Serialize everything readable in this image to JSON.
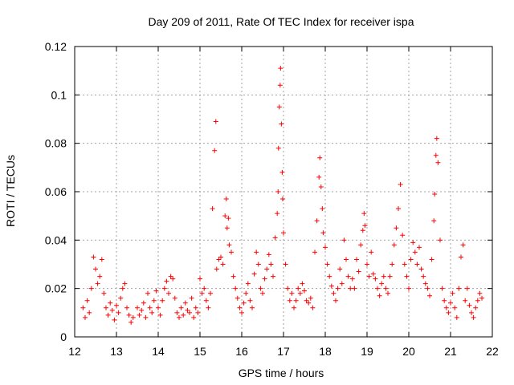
{
  "chart_data": {
    "type": "scatter",
    "title": "Day 209 of 2011, Rate Of TEC Index for receiver ispa",
    "xlabel": "GPS time / hours",
    "ylabel": "ROTI / TECUs",
    "xlim": [
      12,
      22
    ],
    "ylim": [
      0,
      0.12
    ],
    "xticks": [
      "12",
      "13",
      "14",
      "15",
      "16",
      "17",
      "18",
      "19",
      "20",
      "21",
      "22"
    ],
    "yticks": [
      "0",
      "0.02",
      "0.04",
      "0.06",
      "0.08",
      "0.1",
      "0.12"
    ],
    "grid": true,
    "legend": "none",
    "marker": "+",
    "series_color": "#ff0000",
    "series": [
      {
        "points": [
          [
            12.2,
            0.012
          ],
          [
            12.25,
            0.008
          ],
          [
            12.3,
            0.015
          ],
          [
            12.35,
            0.01
          ],
          [
            12.4,
            0.02
          ],
          [
            12.45,
            0.033
          ],
          [
            12.5,
            0.028
          ],
          [
            12.55,
            0.022
          ],
          [
            12.6,
            0.025
          ],
          [
            12.65,
            0.032
          ],
          [
            12.7,
            0.018
          ],
          [
            12.75,
            0.012
          ],
          [
            12.8,
            0.009
          ],
          [
            12.85,
            0.014
          ],
          [
            12.9,
            0.011
          ],
          [
            12.95,
            0.007
          ],
          [
            13.0,
            0.013
          ],
          [
            13.05,
            0.01
          ],
          [
            13.1,
            0.016
          ],
          [
            13.15,
            0.02
          ],
          [
            13.2,
            0.022
          ],
          [
            13.25,
            0.012
          ],
          [
            13.3,
            0.009
          ],
          [
            13.35,
            0.006
          ],
          [
            13.4,
            0.008
          ],
          [
            13.5,
            0.012
          ],
          [
            13.55,
            0.009
          ],
          [
            13.6,
            0.011
          ],
          [
            13.65,
            0.014
          ],
          [
            13.7,
            0.008
          ],
          [
            13.75,
            0.018
          ],
          [
            13.8,
            0.012
          ],
          [
            13.85,
            0.01
          ],
          [
            13.9,
            0.015
          ],
          [
            13.95,
            0.019
          ],
          [
            14.0,
            0.012
          ],
          [
            14.05,
            0.009
          ],
          [
            14.1,
            0.015
          ],
          [
            14.15,
            0.02
          ],
          [
            14.2,
            0.023
          ],
          [
            14.25,
            0.018
          ],
          [
            14.3,
            0.025
          ],
          [
            14.35,
            0.024
          ],
          [
            14.4,
            0.016
          ],
          [
            14.45,
            0.01
          ],
          [
            14.5,
            0.008
          ],
          [
            14.55,
            0.012
          ],
          [
            14.6,
            0.009
          ],
          [
            14.65,
            0.014
          ],
          [
            14.7,
            0.011
          ],
          [
            14.75,
            0.01
          ],
          [
            14.8,
            0.016
          ],
          [
            14.85,
            0.008
          ],
          [
            14.9,
            0.012
          ],
          [
            14.95,
            0.01
          ],
          [
            15.0,
            0.024
          ],
          [
            15.05,
            0.018
          ],
          [
            15.1,
            0.02
          ],
          [
            15.15,
            0.015
          ],
          [
            15.2,
            0.012
          ],
          [
            15.25,
            0.018
          ],
          [
            15.3,
            0.053
          ],
          [
            15.35,
            0.077
          ],
          [
            15.38,
            0.089
          ],
          [
            15.4,
            0.028
          ],
          [
            15.45,
            0.032
          ],
          [
            15.5,
            0.033
          ],
          [
            15.55,
            0.03
          ],
          [
            15.6,
            0.05
          ],
          [
            15.63,
            0.057
          ],
          [
            15.65,
            0.045
          ],
          [
            15.68,
            0.049
          ],
          [
            15.7,
            0.038
          ],
          [
            15.75,
            0.035
          ],
          [
            15.8,
            0.025
          ],
          [
            15.85,
            0.02
          ],
          [
            15.9,
            0.016
          ],
          [
            15.95,
            0.012
          ],
          [
            16.0,
            0.01
          ],
          [
            16.05,
            0.014
          ],
          [
            16.1,
            0.018
          ],
          [
            16.15,
            0.022
          ],
          [
            16.2,
            0.015
          ],
          [
            16.25,
            0.012
          ],
          [
            16.3,
            0.026
          ],
          [
            16.35,
            0.035
          ],
          [
            16.4,
            0.03
          ],
          [
            16.45,
            0.02
          ],
          [
            16.5,
            0.018
          ],
          [
            16.55,
            0.024
          ],
          [
            16.6,
            0.028
          ],
          [
            16.65,
            0.034
          ],
          [
            16.7,
            0.03
          ],
          [
            16.75,
            0.025
          ],
          [
            16.8,
            0.041
          ],
          [
            16.85,
            0.051
          ],
          [
            16.87,
            0.06
          ],
          [
            16.88,
            0.078
          ],
          [
            16.9,
            0.095
          ],
          [
            16.92,
            0.104
          ],
          [
            16.93,
            0.111
          ],
          [
            16.95,
            0.088
          ],
          [
            16.97,
            0.068
          ],
          [
            16.98,
            0.057
          ],
          [
            17.0,
            0.043
          ],
          [
            17.05,
            0.03
          ],
          [
            17.1,
            0.02
          ],
          [
            17.15,
            0.015
          ],
          [
            17.2,
            0.018
          ],
          [
            17.25,
            0.012
          ],
          [
            17.3,
            0.015
          ],
          [
            17.35,
            0.02
          ],
          [
            17.4,
            0.018
          ],
          [
            17.45,
            0.022
          ],
          [
            17.5,
            0.019
          ],
          [
            17.55,
            0.015
          ],
          [
            17.6,
            0.014
          ],
          [
            17.65,
            0.016
          ],
          [
            17.7,
            0.012
          ],
          [
            17.75,
            0.035
          ],
          [
            17.8,
            0.048
          ],
          [
            17.85,
            0.066
          ],
          [
            17.87,
            0.074
          ],
          [
            17.9,
            0.062
          ],
          [
            17.93,
            0.053
          ],
          [
            17.95,
            0.043
          ],
          [
            18.0,
            0.037
          ],
          [
            18.05,
            0.03
          ],
          [
            18.1,
            0.025
          ],
          [
            18.15,
            0.021
          ],
          [
            18.2,
            0.018
          ],
          [
            18.25,
            0.015
          ],
          [
            18.3,
            0.02
          ],
          [
            18.35,
            0.028
          ],
          [
            18.4,
            0.022
          ],
          [
            18.45,
            0.04
          ],
          [
            18.5,
            0.032
          ],
          [
            18.55,
            0.025
          ],
          [
            18.6,
            0.02
          ],
          [
            18.65,
            0.024
          ],
          [
            18.7,
            0.02
          ],
          [
            18.75,
            0.032
          ],
          [
            18.8,
            0.027
          ],
          [
            18.85,
            0.038
          ],
          [
            18.9,
            0.044
          ],
          [
            18.93,
            0.051
          ],
          [
            18.95,
            0.046
          ],
          [
            19.0,
            0.03
          ],
          [
            19.05,
            0.025
          ],
          [
            19.1,
            0.035
          ],
          [
            19.15,
            0.026
          ],
          [
            19.2,
            0.024
          ],
          [
            19.25,
            0.02
          ],
          [
            19.3,
            0.017
          ],
          [
            19.35,
            0.022
          ],
          [
            19.4,
            0.025
          ],
          [
            19.45,
            0.02
          ],
          [
            19.5,
            0.018
          ],
          [
            19.55,
            0.025
          ],
          [
            19.6,
            0.03
          ],
          [
            19.65,
            0.038
          ],
          [
            19.7,
            0.045
          ],
          [
            19.75,
            0.053
          ],
          [
            19.8,
            0.063
          ],
          [
            19.85,
            0.042
          ],
          [
            19.9,
            0.03
          ],
          [
            19.95,
            0.025
          ],
          [
            20.0,
            0.02
          ],
          [
            20.05,
            0.032
          ],
          [
            20.1,
            0.039
          ],
          [
            20.15,
            0.035
          ],
          [
            20.2,
            0.03
          ],
          [
            20.25,
            0.037
          ],
          [
            20.3,
            0.028
          ],
          [
            20.35,
            0.025
          ],
          [
            20.4,
            0.022
          ],
          [
            20.45,
            0.02
          ],
          [
            20.5,
            0.017
          ],
          [
            20.55,
            0.032
          ],
          [
            20.6,
            0.048
          ],
          [
            20.62,
            0.059
          ],
          [
            20.65,
            0.075
          ],
          [
            20.67,
            0.082
          ],
          [
            20.7,
            0.072
          ],
          [
            20.75,
            0.04
          ],
          [
            20.8,
            0.02
          ],
          [
            20.85,
            0.015
          ],
          [
            20.9,
            0.012
          ],
          [
            20.95,
            0.01
          ],
          [
            21.0,
            0.014
          ],
          [
            21.05,
            0.018
          ],
          [
            21.1,
            0.012
          ],
          [
            21.15,
            0.008
          ],
          [
            21.2,
            0.02
          ],
          [
            21.25,
            0.033
          ],
          [
            21.3,
            0.038
          ],
          [
            21.35,
            0.015
          ],
          [
            21.4,
            0.02
          ],
          [
            21.45,
            0.013
          ],
          [
            21.5,
            0.01
          ],
          [
            21.55,
            0.008
          ],
          [
            21.6,
            0.012
          ],
          [
            21.65,
            0.015
          ],
          [
            21.7,
            0.018
          ],
          [
            21.75,
            0.016
          ]
        ]
      }
    ]
  }
}
